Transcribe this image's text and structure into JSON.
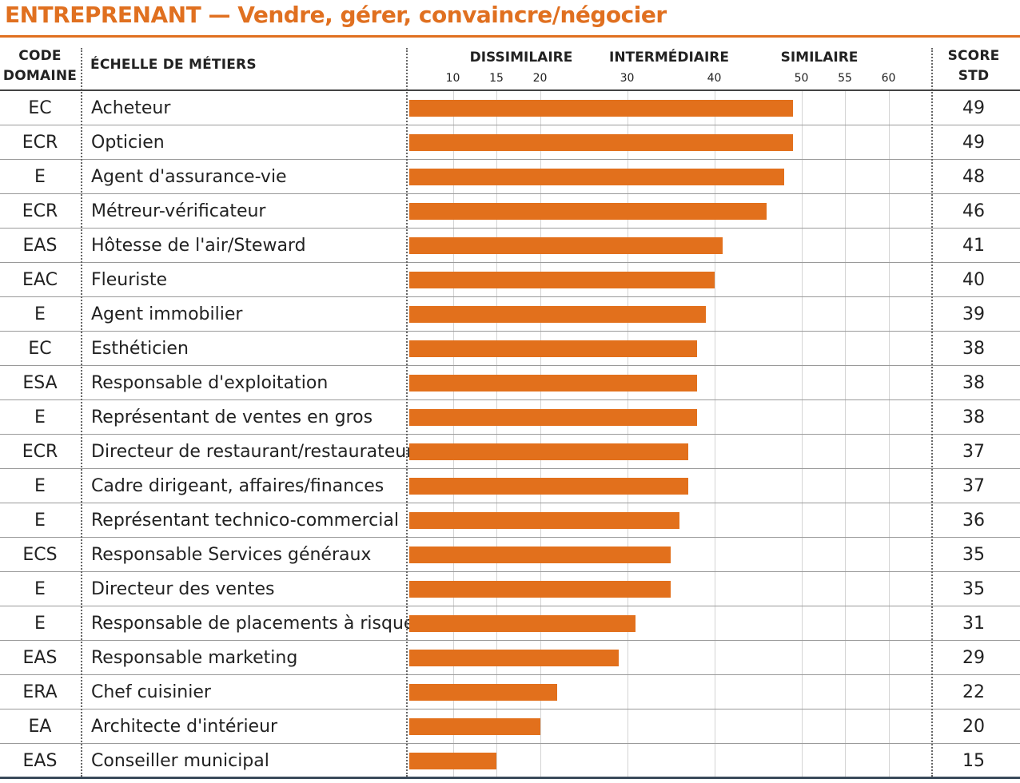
{
  "title": "ENTREPRENANT — Vendre, gérer, convaincre/négocier",
  "header": {
    "code_line1": "CODE",
    "code_line2": "DOMAINE",
    "scale": "ÉCHELLE DE MÉTIERS",
    "score_line1": "SCORE",
    "score_line2": "STD",
    "groups": [
      "DISSIMILAIRE",
      "INTERMÉDIAIRE",
      "SIMILAIRE"
    ]
  },
  "colors": {
    "title": "#e07020",
    "bar": "#e2701c"
  },
  "chart_data": {
    "type": "bar",
    "orientation": "horizontal",
    "xlim": [
      5,
      65
    ],
    "ticks": [
      10,
      15,
      20,
      30,
      40,
      50,
      55,
      60
    ],
    "categories": [
      "Acheteur",
      "Opticien",
      "Agent d'assurance-vie",
      "Métreur-vérificateur",
      "Hôtesse de l'air/Steward",
      "Fleuriste",
      "Agent immobilier",
      "Esthéticien",
      "Responsable d'exploitation",
      "Représentant de ventes en gros",
      "Directeur de restaurant/restaurateur",
      "Cadre dirigeant, affaires/finances",
      "Représentant technico-commercial",
      "Responsable Services généraux",
      "Directeur des ventes",
      "Responsable de placements à risques",
      "Responsable marketing",
      "Chef cuisinier",
      "Architecte d'intérieur",
      "Conseiller  municipal"
    ],
    "codes": [
      "EC",
      "ECR",
      "E",
      "ECR",
      "EAS",
      "EAC",
      "E",
      "EC",
      "ESA",
      "E",
      "ECR",
      "E",
      "E",
      "ECS",
      "E",
      "E",
      "EAS",
      "ERA",
      "EA",
      "EAS"
    ],
    "values": [
      49,
      49,
      48,
      46,
      41,
      40,
      39,
      38,
      38,
      38,
      37,
      37,
      36,
      35,
      35,
      31,
      29,
      22,
      20,
      15
    ],
    "grid": true
  }
}
